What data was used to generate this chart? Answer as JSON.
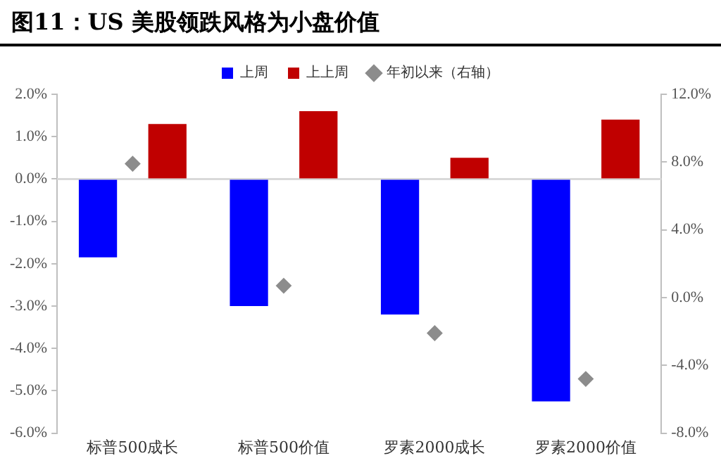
{
  "chart_data": {
    "type": "bar",
    "title": "图11：US 美股领跌风格为小盘价值",
    "categories": [
      "标普500成长",
      "标普500价值",
      "罗素2000成长",
      "罗素2000价值"
    ],
    "series": [
      {
        "name": "上周",
        "color": "#0000ff",
        "values": [
          -1.85,
          -3.0,
          -3.2,
          -5.25
        ]
      },
      {
        "name": "上上周",
        "color": "#c00000",
        "values": [
          1.3,
          1.6,
          0.5,
          1.4
        ]
      },
      {
        "name": "年初以来（右轴）",
        "type": "scatter",
        "axis": "y2",
        "color": "#8c8c8c",
        "values": [
          7.9,
          0.7,
          -2.1,
          -4.8
        ]
      }
    ],
    "ylim": [
      -6,
      2
    ],
    "yticks": [
      {
        "value": -6,
        "label": "-6.0%"
      },
      {
        "value": -5,
        "label": "-5.0%"
      },
      {
        "value": -4,
        "label": "-4.0%"
      },
      {
        "value": -3,
        "label": "-3.0%"
      },
      {
        "value": -2,
        "label": "-2.0%"
      },
      {
        "value": -1,
        "label": "-1.0%"
      },
      {
        "value": 0,
        "label": "0.0%"
      },
      {
        "value": 1,
        "label": "1.0%"
      },
      {
        "value": 2,
        "label": "2.0%"
      }
    ],
    "y2lim": [
      -8,
      12
    ],
    "y2ticks": [
      {
        "value": -8,
        "label": "-8.0%"
      },
      {
        "value": -4,
        "label": "-4.0%"
      },
      {
        "value": 0,
        "label": "0.0%"
      },
      {
        "value": 4,
        "label": "4.0%"
      },
      {
        "value": 8,
        "label": "8.0%"
      },
      {
        "value": 12,
        "label": "12.0%"
      }
    ],
    "ref_lines": [
      {
        "axis": "y",
        "value": 0,
        "color": "#d9d9d9"
      }
    ],
    "legend": "top",
    "marker": "diamond",
    "grid": false
  }
}
